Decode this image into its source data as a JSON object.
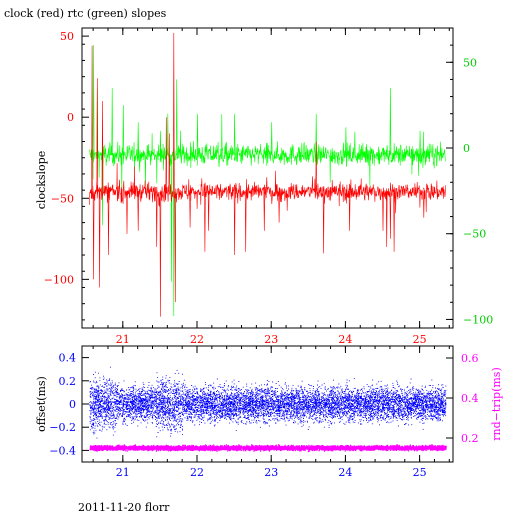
{
  "title": "clock (red) rtc (green) slopes",
  "footer": "2011-11-20 florr",
  "colors": {
    "red": "#ff0000",
    "green": "#00ff00",
    "blue": "#0000ff",
    "magenta": "#ff00ff",
    "axis": "#000000"
  },
  "chart_data": [
    {
      "type": "line",
      "xlabel": "",
      "ylabel": "clockslope",
      "xlim": [
        20.45,
        25.45
      ],
      "x_ticks": [
        21,
        22,
        23,
        24,
        25
      ],
      "ylim_left": [
        -130,
        55
      ],
      "ylim_right": [
        -105,
        70
      ],
      "y_ticks_left": [
        50,
        0,
        -50,
        -100
      ],
      "y_ticks_right": [
        50,
        0,
        -50,
        -100
      ],
      "series": [
        {
          "axis": "left",
          "color": "red",
          "baseline": -46,
          "noise": 4,
          "x_start": 20.55,
          "x_end": 25.35,
          "spikes": [
            {
              "x": 20.58,
              "y": 44
            },
            {
              "x": 20.6,
              "y": -100
            },
            {
              "x": 20.65,
              "y": 24
            },
            {
              "x": 20.68,
              "y": -105
            },
            {
              "x": 20.72,
              "y": 10
            },
            {
              "x": 20.8,
              "y": -85
            },
            {
              "x": 21.05,
              "y": -72
            },
            {
              "x": 21.2,
              "y": -70
            },
            {
              "x": 21.45,
              "y": -80
            },
            {
              "x": 21.5,
              "y": -123
            },
            {
              "x": 21.58,
              "y": 0
            },
            {
              "x": 21.62,
              "y": -10
            },
            {
              "x": 21.68,
              "y": 52
            },
            {
              "x": 21.7,
              "y": -114
            },
            {
              "x": 21.9,
              "y": -68
            },
            {
              "x": 22.1,
              "y": -83
            },
            {
              "x": 22.15,
              "y": -70
            },
            {
              "x": 22.5,
              "y": -85
            },
            {
              "x": 22.65,
              "y": -83
            },
            {
              "x": 22.9,
              "y": -70
            },
            {
              "x": 23.1,
              "y": -65
            },
            {
              "x": 23.6,
              "y": -15
            },
            {
              "x": 23.7,
              "y": -84
            },
            {
              "x": 24.05,
              "y": -70
            },
            {
              "x": 24.5,
              "y": -70
            },
            {
              "x": 24.55,
              "y": -80
            },
            {
              "x": 24.6,
              "y": -75
            },
            {
              "x": 24.65,
              "y": -83
            },
            {
              "x": 25.05,
              "y": -62
            }
          ]
        },
        {
          "axis": "right",
          "color": "green",
          "baseline": -4,
          "noise": 4.5,
          "x_start": 20.55,
          "x_end": 25.35,
          "spikes": [
            {
              "x": 20.6,
              "y": 60
            },
            {
              "x": 20.65,
              "y": 35
            },
            {
              "x": 20.72,
              "y": -45
            },
            {
              "x": 20.85,
              "y": 35
            },
            {
              "x": 21.0,
              "y": 25
            },
            {
              "x": 21.2,
              "y": 15
            },
            {
              "x": 21.5,
              "y": 10
            },
            {
              "x": 21.6,
              "y": 20
            },
            {
              "x": 21.65,
              "y": -78
            },
            {
              "x": 21.68,
              "y": -98
            },
            {
              "x": 21.72,
              "y": 40
            },
            {
              "x": 22.0,
              "y": 20
            },
            {
              "x": 22.5,
              "y": 20
            },
            {
              "x": 23.0,
              "y": 15
            },
            {
              "x": 23.6,
              "y": 20
            },
            {
              "x": 24.0,
              "y": 12
            },
            {
              "x": 24.6,
              "y": 35
            },
            {
              "x": 25.0,
              "y": 10
            }
          ]
        }
      ]
    },
    {
      "type": "scatter",
      "xlabel": "",
      "ylabel_left": "offset(ms)",
      "ylabel_right": "rnd−trip(ms)",
      "xlim": [
        20.45,
        25.45
      ],
      "x_ticks": [
        21,
        22,
        23,
        24,
        25
      ],
      "ylim_left": [
        -0.5,
        0.5
      ],
      "ylim_right": [
        0.08,
        0.66
      ],
      "y_ticks_left": [
        0.4,
        0.2,
        0,
        -0.2,
        -0.4
      ],
      "y_ticks_left_labels": [
        "0.4",
        "0.2",
        "0",
        "−0.2",
        "−0.4"
      ],
      "y_ticks_right": [
        0.6,
        0.4,
        0.2
      ],
      "series": [
        {
          "axis": "left",
          "color": "blue",
          "mean": 0.0,
          "spread": 0.13,
          "x_start": 20.55,
          "x_end": 25.35
        },
        {
          "axis": "right",
          "color": "magenta",
          "mean": 0.15,
          "spread": 0.008,
          "x_start": 20.55,
          "x_end": 25.35
        }
      ]
    }
  ]
}
